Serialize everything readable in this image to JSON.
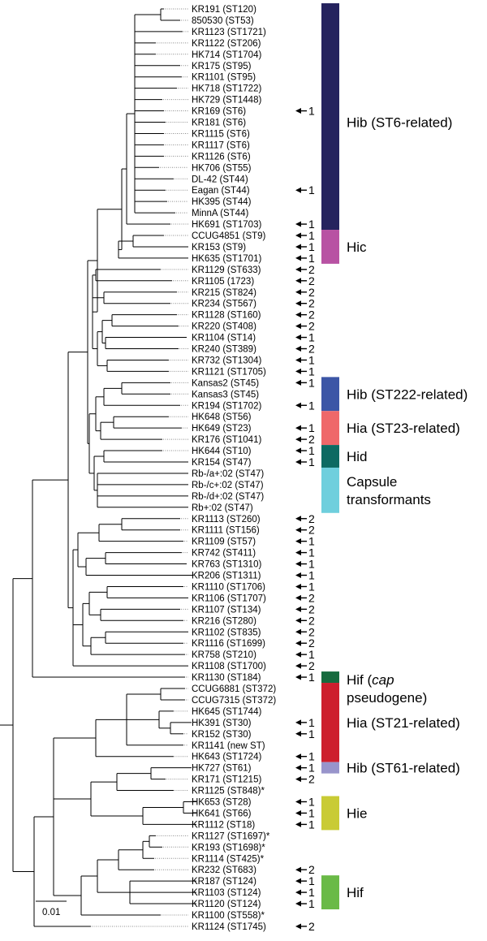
{
  "taxa": [
    {
      "label": "KR191 (ST120)",
      "marker": ""
    },
    {
      "label": "850530 (ST53)",
      "marker": ""
    },
    {
      "label": "KR1123 (ST1721)",
      "marker": ""
    },
    {
      "label": "KR1122 (ST206)",
      "marker": ""
    },
    {
      "label": "HK714 (ST1704)",
      "marker": ""
    },
    {
      "label": "KR175 (ST95)",
      "marker": ""
    },
    {
      "label": "KR1101 (ST95)",
      "marker": ""
    },
    {
      "label": "HK718 (ST1722)",
      "marker": ""
    },
    {
      "label": "HK729 (ST1448)",
      "marker": ""
    },
    {
      "label": "KR169 (ST6)",
      "marker": "1"
    },
    {
      "label": "KR181 (ST6)",
      "marker": ""
    },
    {
      "label": "KR1115 (ST6)",
      "marker": ""
    },
    {
      "label": "KR1117 (ST6)",
      "marker": ""
    },
    {
      "label": "KR1126 (ST6)",
      "marker": ""
    },
    {
      "label": "HK706 (ST55)",
      "marker": ""
    },
    {
      "label": "DL-42 (ST44)",
      "marker": ""
    },
    {
      "label": "Eagan (ST44)",
      "marker": "1"
    },
    {
      "label": "HK395 (ST44)",
      "marker": ""
    },
    {
      "label": "MinnA (ST44)",
      "marker": ""
    },
    {
      "label": "HK691 (ST1703)",
      "marker": "1"
    },
    {
      "label": "CCUG4851 (ST9)",
      "marker": "1"
    },
    {
      "label": "KR153 (ST9)",
      "marker": "1"
    },
    {
      "label": "HK635 (ST1701)",
      "marker": "1"
    },
    {
      "label": "KR1129 (ST633)",
      "marker": "2"
    },
    {
      "label": "KR1105 (1723)",
      "marker": "2"
    },
    {
      "label": "KR215 (ST824)",
      "marker": "2"
    },
    {
      "label": "KR234 (ST567)",
      "marker": "2"
    },
    {
      "label": "KR1128 (ST160)",
      "marker": "2"
    },
    {
      "label": "KR220 (ST408)",
      "marker": "2"
    },
    {
      "label": "KR1104 (ST14)",
      "marker": "1"
    },
    {
      "label": "KR240 (ST389)",
      "marker": "2"
    },
    {
      "label": "KR732 (ST1304)",
      "marker": "1"
    },
    {
      "label": "KR1121 (ST1705)",
      "marker": "1"
    },
    {
      "label": "Kansas2 (ST45)",
      "marker": "1"
    },
    {
      "label": "Kansas3 (ST45)",
      "marker": ""
    },
    {
      "label": "KR194 (ST1702)",
      "marker": "1"
    },
    {
      "label": "HK648 (ST56)",
      "marker": ""
    },
    {
      "label": "HK649 (ST23)",
      "marker": "1"
    },
    {
      "label": "KR176 (ST1041)",
      "marker": "2"
    },
    {
      "label": "HK644 (ST10)",
      "marker": "1"
    },
    {
      "label": "KR154 (ST47)",
      "marker": "1"
    },
    {
      "label": "Rb-/a+:02 (ST47)",
      "marker": ""
    },
    {
      "label": "Rb-/c+:02 (ST47)",
      "marker": ""
    },
    {
      "label": "Rb-/d+:02 (ST47)",
      "marker": ""
    },
    {
      "label": "Rb+:02 (ST47)",
      "marker": ""
    },
    {
      "label": "KR1113 (ST260)",
      "marker": "2"
    },
    {
      "label": "KR1111 (ST156)",
      "marker": "2"
    },
    {
      "label": "KR1109 (ST57)",
      "marker": "1"
    },
    {
      "label": "KR742 (ST411)",
      "marker": "1"
    },
    {
      "label": "KR763 (ST1310)",
      "marker": "1"
    },
    {
      "label": "KR206 (ST1311)",
      "marker": "1"
    },
    {
      "label": "KR1110 (ST1706)",
      "marker": "1"
    },
    {
      "label": "KR1106 (ST1707)",
      "marker": "2"
    },
    {
      "label": "KR1107 (ST134)",
      "marker": "2"
    },
    {
      "label": "KR216 (ST280)",
      "marker": "2"
    },
    {
      "label": "KR1102 (ST835)",
      "marker": "2"
    },
    {
      "label": "KR1116 (ST1699)",
      "marker": "2"
    },
    {
      "label": "KR758 (ST210)",
      "marker": "1"
    },
    {
      "label": "KR1108 (ST1700)",
      "marker": "2"
    },
    {
      "label": "KR1130 (ST184)",
      "marker": "1"
    },
    {
      "label": "CCUG6881 (ST372)",
      "marker": ""
    },
    {
      "label": "CCUG7315 (ST372)",
      "marker": ""
    },
    {
      "label": "HK645 (ST1744)",
      "marker": ""
    },
    {
      "label": "HK391 (ST30)",
      "marker": "1"
    },
    {
      "label": "KR152 (ST30)",
      "marker": "1"
    },
    {
      "label": "KR1141 (new ST)",
      "marker": ""
    },
    {
      "label": "HK643 (ST1724)",
      "marker": "1"
    },
    {
      "label": "HK727 (ST61)",
      "marker": "1"
    },
    {
      "label": "KR171 (ST1215)",
      "marker": "2"
    },
    {
      "label": "KR1125 (ST848)*",
      "marker": ""
    },
    {
      "label": "HK653 (ST28)",
      "marker": "1"
    },
    {
      "label": "HK641 (ST66)",
      "marker": "1"
    },
    {
      "label": "KR1112 (ST18)",
      "marker": "1"
    },
    {
      "label": "KR1127 (ST1697)*",
      "marker": ""
    },
    {
      "label": "KR193 (ST1698)*",
      "marker": ""
    },
    {
      "label": "KR1114 (ST425)*",
      "marker": ""
    },
    {
      "label": "KR232 (ST683)",
      "marker": "2"
    },
    {
      "label": "KR187 (ST124)",
      "marker": "1"
    },
    {
      "label": "KR1103 (ST124)",
      "marker": "1"
    },
    {
      "label": "KR1120 (ST124)",
      "marker": "1"
    },
    {
      "label": "KR1100 (ST558)*",
      "marker": ""
    },
    {
      "label": "KR1124 (ST1745)",
      "marker": "2"
    }
  ],
  "groups": [
    {
      "lines": [
        "Hib (ST6-related)"
      ],
      "italic": [],
      "color": "#25235e",
      "from": 0,
      "to": 19,
      "labelRow": 10
    },
    {
      "lines": [
        "Hic"
      ],
      "italic": [],
      "color": "#b852a3",
      "from": 20,
      "to": 22,
      "labelRow": 21
    },
    {
      "lines": [
        "Hib (ST222-related)"
      ],
      "italic": [],
      "color": "#3c56a6",
      "from": 33,
      "to": 35,
      "labelRow": 34
    },
    {
      "lines": [
        "Hia (ST23-related)"
      ],
      "italic": [],
      "color": "#ef686a",
      "from": 36,
      "to": 38,
      "labelRow": 37
    },
    {
      "lines": [
        "Hid"
      ],
      "italic": [],
      "color": "#0d6a62",
      "from": 39,
      "to": 40,
      "labelRow": 39.5
    },
    {
      "lines": [
        "Capsule",
        "transformants"
      ],
      "italic": [],
      "color": "#6fcfdd",
      "from": 41,
      "to": 44,
      "labelRow": 42.5
    },
    {
      "lines": [
        "Hif (cap",
        "pseudogene)"
      ],
      "italic": [
        "cap"
      ],
      "color": "#166b3e",
      "from": 59,
      "to": 59,
      "labelRow": 60
    },
    {
      "lines": [
        "Hia (ST21-related)"
      ],
      "italic": [],
      "color": "#cd1f2d",
      "from": 60,
      "to": 66,
      "labelRow": 63
    },
    {
      "lines": [
        "Hib (ST61-related)"
      ],
      "italic": [],
      "color": "#9894cb",
      "from": 67,
      "to": 67,
      "labelRow": 67
    },
    {
      "lines": [
        "Hie"
      ],
      "italic": [],
      "color": "#c9cb35",
      "from": 70,
      "to": 72,
      "labelRow": 71
    },
    {
      "lines": [
        "Hif"
      ],
      "italic": [],
      "color": "#6aba47",
      "from": 77,
      "to": 79,
      "labelRow": 78
    }
  ],
  "scale_bar": {
    "label": "0.01"
  }
}
